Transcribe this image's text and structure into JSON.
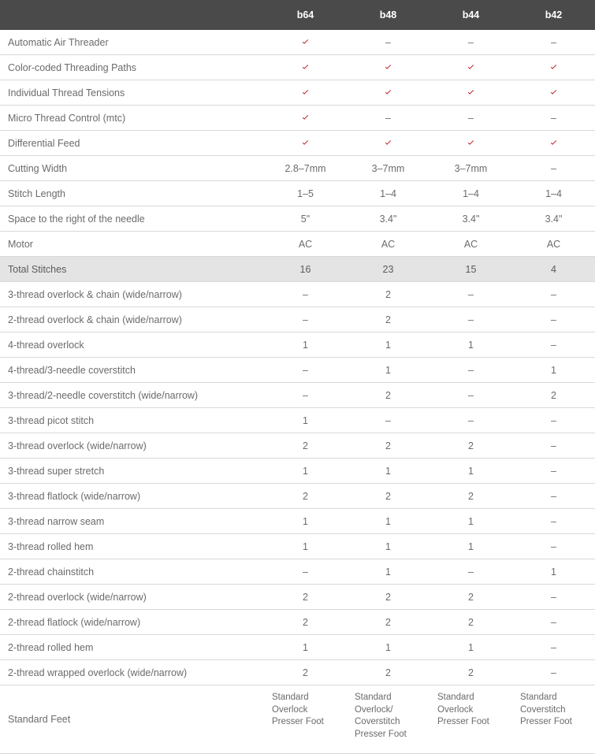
{
  "colors": {
    "header_bg": "#4a4a4a",
    "header_text": "#ffffff",
    "border": "#d9d9d9",
    "text": "#6b6b6b",
    "highlight_bg": "#e4e4e4",
    "check_color": "#bd1622"
  },
  "columns": [
    "b64",
    "b48",
    "b44",
    "b42"
  ],
  "rows": [
    {
      "label": "Automatic Air Threader",
      "vals": [
        "check",
        "–",
        "–",
        "–"
      ]
    },
    {
      "label": "Color-coded Threading Paths",
      "vals": [
        "check",
        "check",
        "check",
        "check"
      ]
    },
    {
      "label": "Individual Thread Tensions",
      "vals": [
        "check",
        "check",
        "check",
        "check"
      ]
    },
    {
      "label": "Micro Thread Control (mtc)",
      "vals": [
        "check",
        "–",
        "–",
        "–"
      ]
    },
    {
      "label": "Differential Feed",
      "vals": [
        "check",
        "check",
        "check",
        "check"
      ]
    },
    {
      "label": "Cutting Width",
      "vals": [
        "2.8–7mm",
        "3–7mm",
        "3–7mm",
        "–"
      ]
    },
    {
      "label": "Stitch Length",
      "vals": [
        "1–5",
        "1–4",
        "1–4",
        "1–4"
      ]
    },
    {
      "label": "Space to the right of the needle",
      "vals": [
        "5\"",
        "3.4\"",
        "3.4\"",
        "3.4\""
      ]
    },
    {
      "label": "Motor",
      "vals": [
        "AC",
        "AC",
        "AC",
        "AC"
      ]
    },
    {
      "label": "Total Stitches",
      "vals": [
        "16",
        "23",
        "15",
        "4"
      ],
      "highlight": true
    },
    {
      "label": "3-thread overlock & chain (wide/narrow)",
      "vals": [
        "–",
        "2",
        "–",
        "–"
      ]
    },
    {
      "label": "2-thread overlock & chain (wide/narrow)",
      "vals": [
        "–",
        "2",
        "–",
        "–"
      ]
    },
    {
      "label": "4-thread overlock",
      "vals": [
        "1",
        "1",
        "1",
        "–"
      ]
    },
    {
      "label": "4-thread/3-needle coverstitch",
      "vals": [
        "–",
        "1",
        "–",
        "1"
      ]
    },
    {
      "label": "3-thread/2-needle coverstitch (wide/narrow)",
      "vals": [
        "–",
        "2",
        "–",
        "2"
      ]
    },
    {
      "label": "3-thread picot stitch",
      "vals": [
        "1",
        "–",
        "–",
        "–"
      ]
    },
    {
      "label": "3-thread overlock (wide/narrow)",
      "vals": [
        "2",
        "2",
        "2",
        "–"
      ]
    },
    {
      "label": "3-thread super stretch",
      "vals": [
        "1",
        "1",
        "1",
        "–"
      ]
    },
    {
      "label": "3-thread flatlock (wide/narrow)",
      "vals": [
        "2",
        "2",
        "2",
        "–"
      ]
    },
    {
      "label": "3-thread narrow seam",
      "vals": [
        "1",
        "1",
        "1",
        "–"
      ]
    },
    {
      "label": "3-thread rolled hem",
      "vals": [
        "1",
        "1",
        "1",
        "–"
      ]
    },
    {
      "label": "2-thread chainstitch",
      "vals": [
        "–",
        "1",
        "–",
        "1"
      ]
    },
    {
      "label": "2-thread overlock (wide/narrow)",
      "vals": [
        "2",
        "2",
        "2",
        "–"
      ]
    },
    {
      "label": "2-thread flatlock (wide/narrow)",
      "vals": [
        "2",
        "2",
        "2",
        "–"
      ]
    },
    {
      "label": "2-thread rolled hem",
      "vals": [
        "1",
        "1",
        "1",
        "–"
      ]
    },
    {
      "label": "2-thread wrapped overlock (wide/narrow)",
      "vals": [
        "2",
        "2",
        "2",
        "–"
      ]
    },
    {
      "label": "Standard Feet",
      "vals": [
        "Standard Overlock Presser Foot",
        "Standard Overlock/ Coverstitch Presser Foot",
        "Standard Overlock Presser Foot",
        "Standard Coverstitch Presser Foot"
      ],
      "foot": true
    }
  ]
}
